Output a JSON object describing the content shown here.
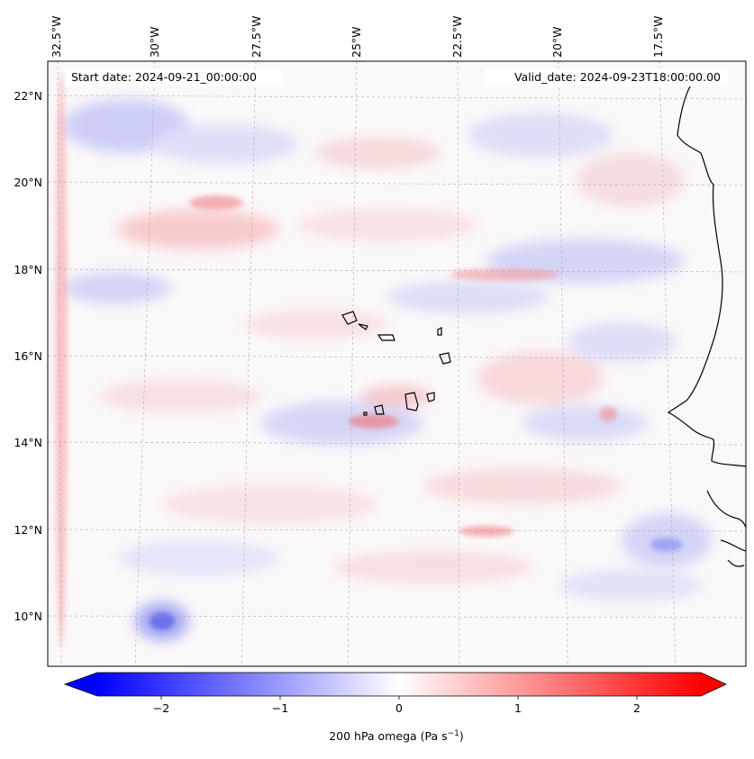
{
  "map": {
    "start_label": "Start date: 2024-09-21_00:00:00",
    "valid_label": "Valid_date: 2024-09-23T18:00:00.00",
    "lon_ticks": [
      "32.5°W",
      "30°W",
      "27.5°W",
      "25°W",
      "22.5°W",
      "20°W",
      "17.5°W"
    ],
    "lat_ticks": [
      "22°N",
      "20°N",
      "18°N",
      "16°N",
      "14°N",
      "12°N",
      "10°N"
    ],
    "colorbar": {
      "label_main": "200 hPa omega (Pa s",
      "label_sup": "−1",
      "label_close": ")",
      "ticks": [
        "−2",
        "−1",
        "0",
        "1",
        "2"
      ],
      "min": -2.75,
      "max": 2.75,
      "tick_values": [
        -2,
        -1,
        0,
        1,
        2
      ],
      "colors": {
        "low": "#0000ff",
        "mid": "#ffffff",
        "high": "#ff0000"
      }
    }
  }
}
